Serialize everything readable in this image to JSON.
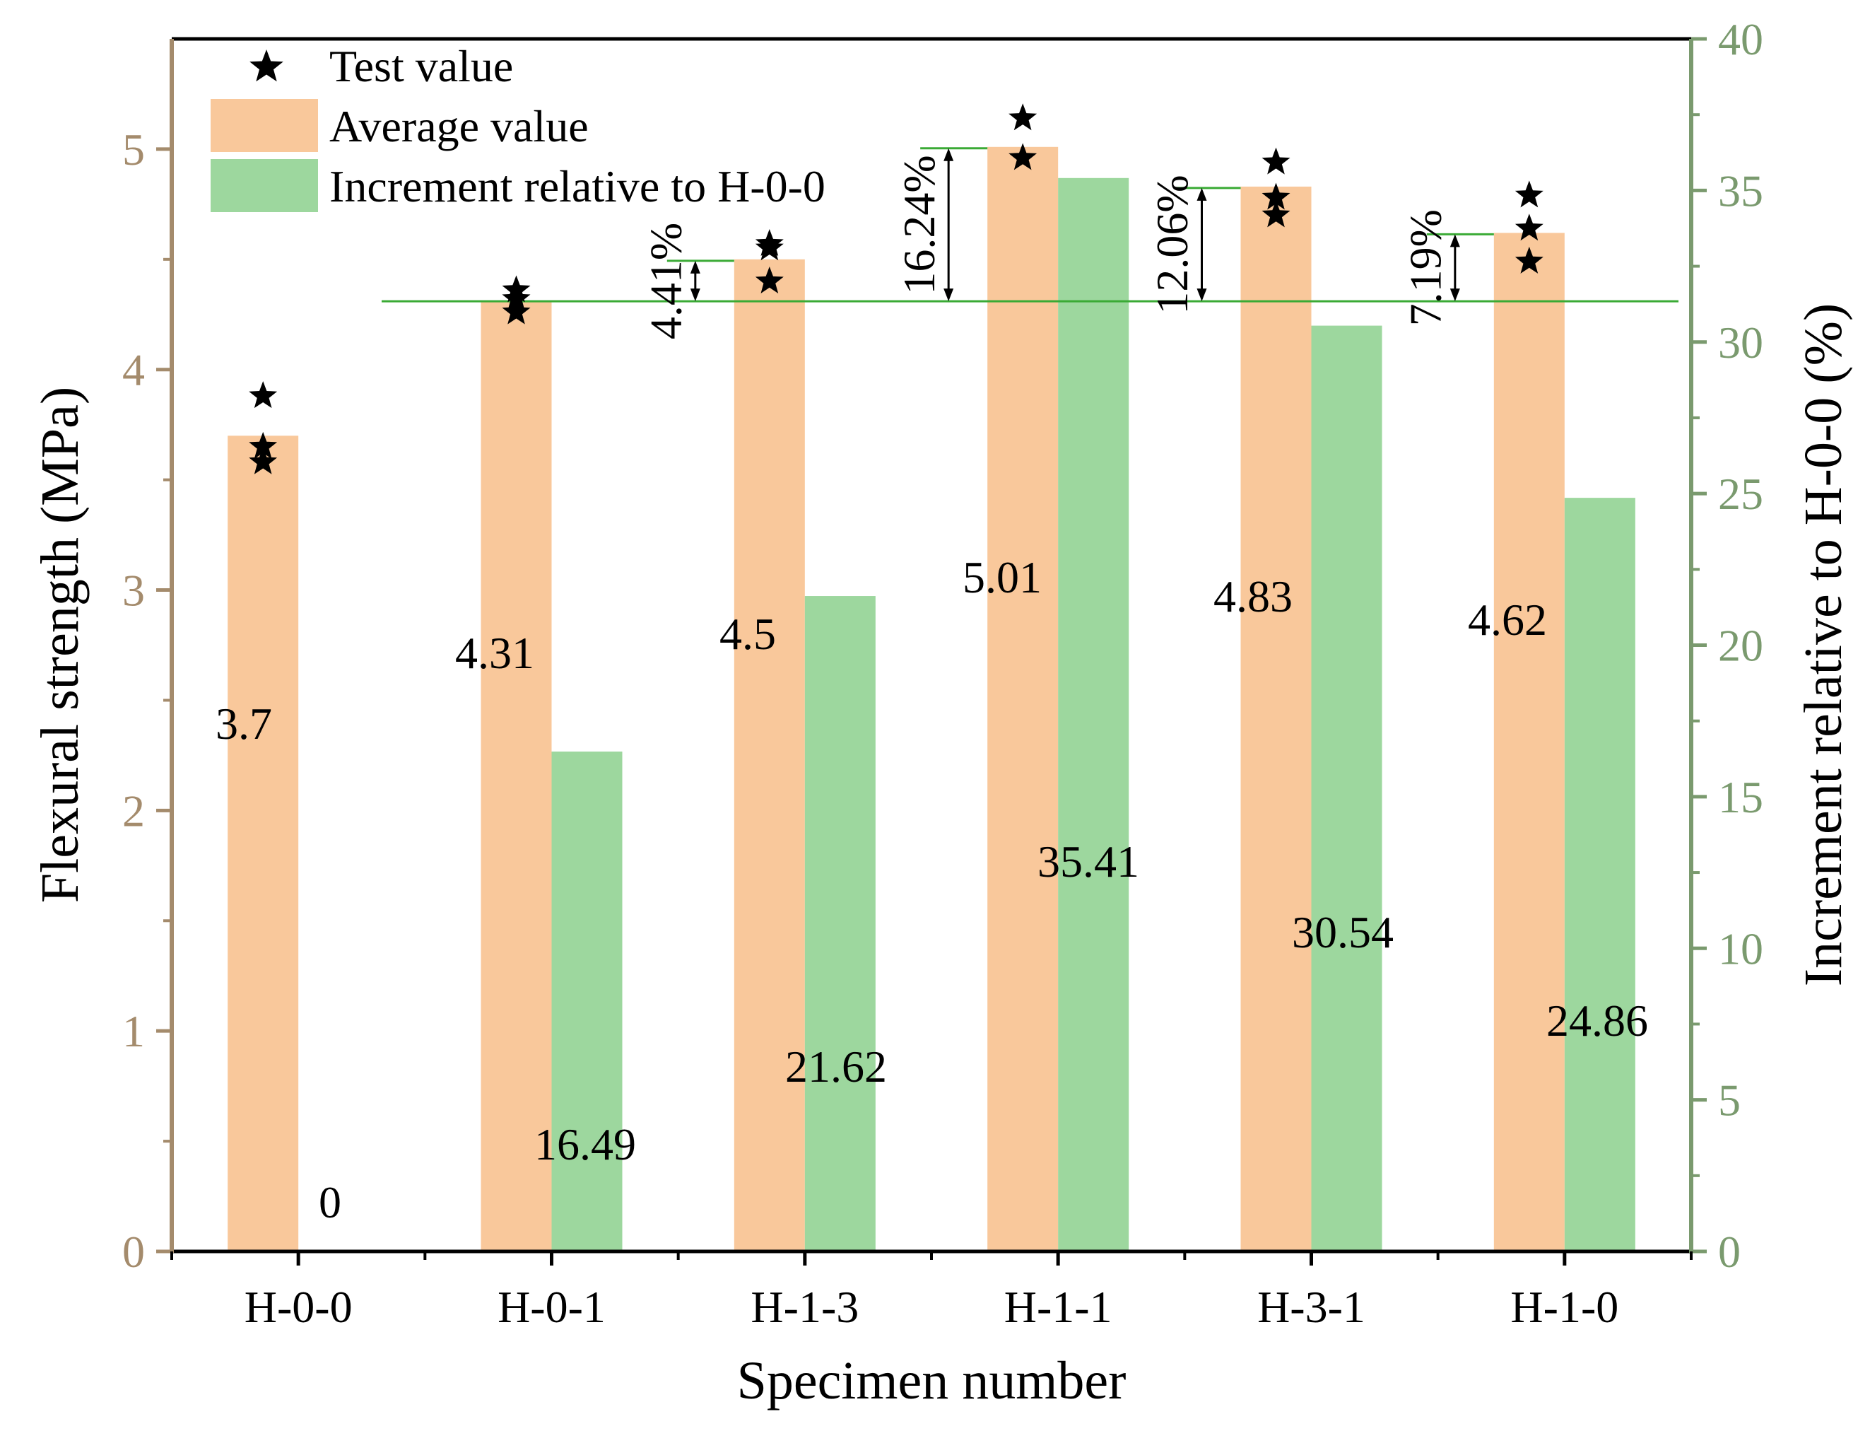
{
  "chart_data": {
    "type": "bar",
    "xlabel": "Specimen number",
    "ylabel_left": "Flexural strength (MPa)",
    "ylabel_right": "Increment relative to H-0-0 (%)",
    "ylim_left": [
      0,
      5.5
    ],
    "ylim_right": [
      0,
      40
    ],
    "left_ticks": [
      0,
      1,
      2,
      3,
      4,
      5
    ],
    "left_tick_labels": [
      "0",
      "1",
      "2",
      "3",
      "4",
      "5"
    ],
    "right_ticks": [
      0,
      5,
      10,
      15,
      20,
      25,
      30,
      35,
      40
    ],
    "right_tick_labels": [
      "0",
      "5",
      "10",
      "15",
      "20",
      "25",
      "30",
      "35",
      "40"
    ],
    "categories": [
      "H-0-0",
      "H-0-1",
      "H-1-3",
      "H-1-1",
      "H-3-1",
      "H-1-0"
    ],
    "series": [
      {
        "name": "Average value",
        "axis": "left",
        "values": [
          3.7,
          4.31,
          4.5,
          5.01,
          4.83,
          4.62
        ],
        "labels": [
          "3.7",
          "4.31",
          "4.5",
          "5.01",
          "4.83",
          "4.62"
        ]
      },
      {
        "name": "Increment relative to H-0-0",
        "axis": "right",
        "values": [
          0,
          16.49,
          21.62,
          35.41,
          30.54,
          24.86
        ],
        "labels": [
          "0",
          "16.49",
          "21.62",
          "35.41",
          "30.54",
          "24.86"
        ]
      }
    ],
    "test_values": [
      [
        3.88,
        3.65,
        3.58
      ],
      [
        4.36,
        4.32,
        4.26
      ],
      [
        4.57,
        4.55,
        4.4
      ],
      [
        5.14,
        4.96
      ],
      [
        4.94,
        4.78,
        4.7
      ],
      [
        4.79,
        4.64,
        4.49
      ]
    ],
    "legend": {
      "position": "top-left",
      "items": [
        "Test value",
        "Average value",
        "Increment relative to H-0-0"
      ]
    },
    "reference_line": {
      "axis": "left",
      "value": 4.31
    },
    "annotations": [
      {
        "category": "H-1-3",
        "label": "4.41%",
        "value": 4.5
      },
      {
        "category": "H-1-1",
        "label": "16.24%",
        "value": 5.01
      },
      {
        "category": "H-3-1",
        "label": "12.06%",
        "value": 4.83
      },
      {
        "category": "H-1-0",
        "label": "7.19%",
        "value": 4.62
      }
    ],
    "colors": {
      "average": "#f9c89b",
      "increment": "#9dd79e",
      "left_axis": "#a48b6c",
      "right_axis": "#7a9a6e",
      "reference_line": "#3aaa35",
      "text": "#000000"
    }
  }
}
